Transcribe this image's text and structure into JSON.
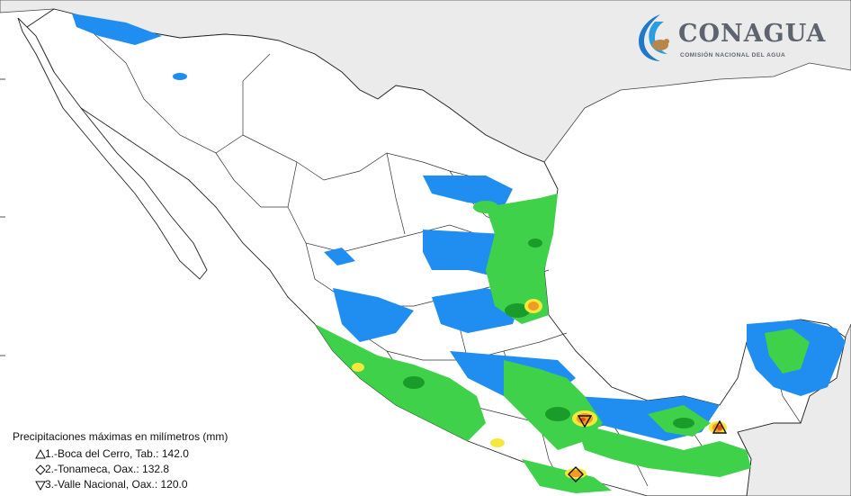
{
  "logo": {
    "name": "CONAGUA",
    "subtitle": "COMISIÓN NACIONAL DEL AGUA"
  },
  "legend": {
    "title": "Precipitaciones máximas en milímetros (mm)",
    "items": [
      {
        "symbol": "triangle-up",
        "label": "1.-Boca del Cerro, Tab.: 142.0",
        "value_mm": 142.0
      },
      {
        "symbol": "diamond",
        "label": "2.-Tonameca, Oax.: 132.8",
        "value_mm": 132.8
      },
      {
        "symbol": "triangle-down",
        "label": "3.-Valle Nacional, Oax.: 120.0",
        "value_mm": 120.0
      }
    ]
  },
  "colors": {
    "ocean": "#ffffff",
    "land_outside": "#ebebeb",
    "rain_light_blue": "#1f8ef0",
    "rain_green": "#3fd14a",
    "rain_dark_green": "#1a9c2a",
    "rain_yellow": "#f5e83a",
    "rain_orange": "#f29a25",
    "rain_red": "#e04a1f",
    "boundary": "#333333"
  }
}
